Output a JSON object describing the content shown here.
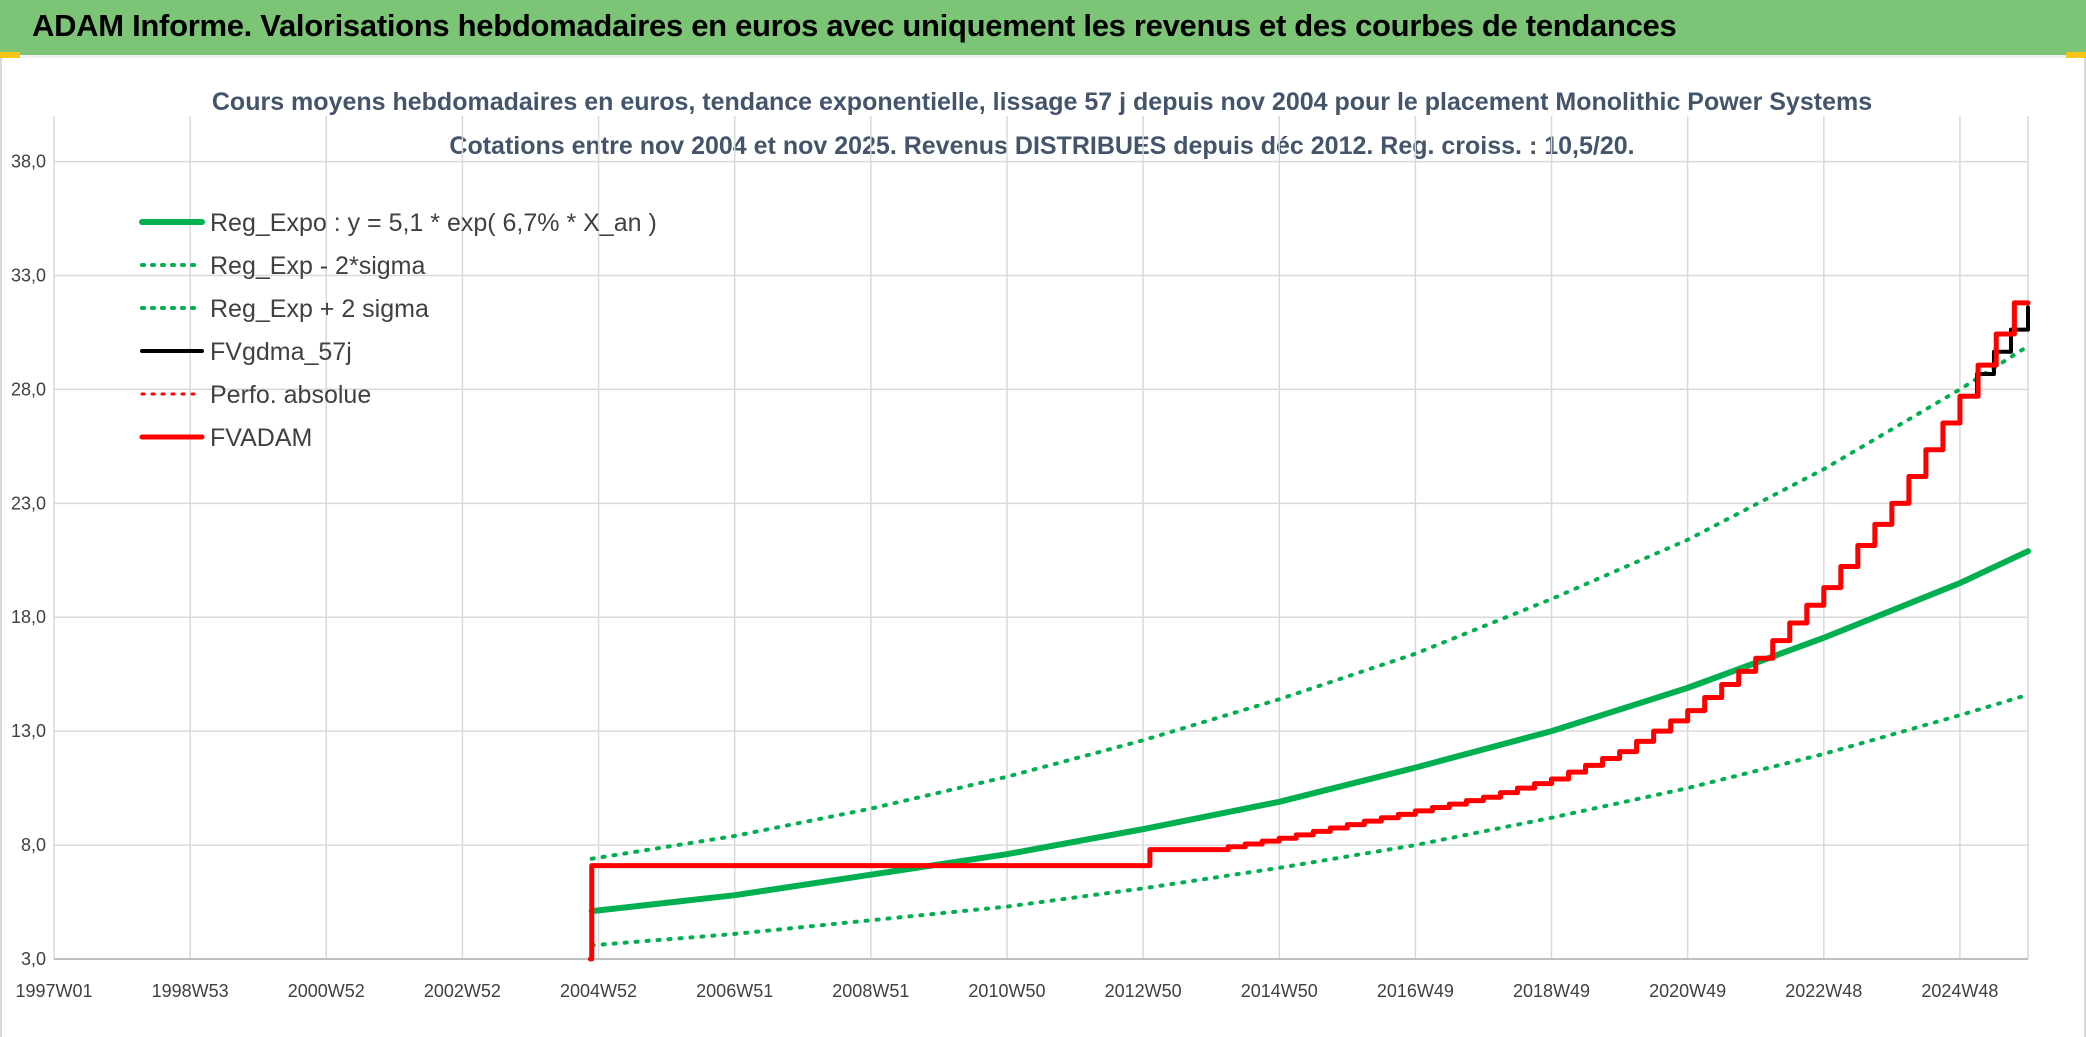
{
  "header": {
    "title": "ADAM Informe. Valorisations hebdomadaires en euros avec uniquement les revenus et des courbes de tendances"
  },
  "colors": {
    "header_bg": "#7cc576",
    "green": "#00b050",
    "red": "#ff0000",
    "black": "#000000",
    "grid": "#d9d9d9",
    "title": "#44546a"
  },
  "chart_data": {
    "type": "line",
    "title_line1": "Cours moyens hebdomadaires en euros, tendance exponentielle, lissage 57 j depuis nov 2004 pour le placement Monolithic Power Systems",
    "title_line2": "Cotations entre nov 2004 et nov 2025. Revenus DISTRIBUES depuis déc 2012. Reg. croiss. : 10,5/20.",
    "x_tick_labels": [
      "1997W01",
      "1998W53",
      "2000W52",
      "2002W52",
      "2004W52",
      "2006W51",
      "2008W51",
      "2010W50",
      "2012W50",
      "2014W50",
      "2016W49",
      "2018W49",
      "2020W49",
      "2022W48",
      "2024W48"
    ],
    "x_unit": "year",
    "x_ticks": [
      1997,
      1999,
      2001,
      2003,
      2005,
      2007,
      2009,
      2011,
      2013,
      2015,
      2017,
      2019,
      2021,
      2023,
      2025
    ],
    "xlim": [
      1997,
      2026
    ],
    "y_ticks": [
      "3,0",
      "8,0",
      "13,0",
      "18,0",
      "23,0",
      "28,0",
      "33,0",
      "38,0"
    ],
    "ylim": [
      3,
      40
    ],
    "grid": true,
    "legend_position": "top-left",
    "legend": [
      {
        "label": "Reg_Expo : y = 5,1 * exp( 6,7% *  X_an )",
        "color": "#00b050",
        "style": "solid",
        "width": 6
      },
      {
        "label": "Reg_Exp - 2*sigma",
        "color": "#00b050",
        "style": "dotted",
        "width": 4
      },
      {
        "label": "Reg_Exp + 2 sigma",
        "color": "#00b050",
        "style": "dotted",
        "width": 4
      },
      {
        "label": "FVgdma_57j",
        "color": "#000000",
        "style": "solid",
        "width": 4
      },
      {
        "label": "Perfo. absolue",
        "color": "#ff0000",
        "style": "dotted",
        "width": 3
      },
      {
        "label": "FVADAM",
        "color": "#ff0000",
        "style": "solid",
        "width": 5
      }
    ],
    "series": [
      {
        "name": "Reg_Expo : y = 5,1 * exp( 6,7% *  X_an )",
        "x": [
          2004.9,
          2007,
          2009,
          2011,
          2013,
          2015,
          2017,
          2019,
          2021,
          2023,
          2025,
          2026
        ],
        "y": [
          5.1,
          5.8,
          6.7,
          7.6,
          8.7,
          9.9,
          11.4,
          13.0,
          14.9,
          17.1,
          19.5,
          20.9
        ]
      },
      {
        "name": "Reg_Exp - 2*sigma",
        "x": [
          2004.9,
          2007,
          2009,
          2011,
          2013,
          2015,
          2017,
          2019,
          2021,
          2023,
          2025,
          2026
        ],
        "y": [
          3.6,
          4.1,
          4.7,
          5.3,
          6.1,
          7.0,
          8.0,
          9.2,
          10.5,
          12.0,
          13.7,
          14.6
        ]
      },
      {
        "name": "Reg_Exp + 2 sigma",
        "x": [
          2004.9,
          2007,
          2009,
          2011,
          2013,
          2015,
          2017,
          2019,
          2021,
          2023,
          2025,
          2026
        ],
        "y": [
          7.4,
          8.4,
          9.6,
          11.0,
          12.6,
          14.4,
          16.4,
          18.8,
          21.4,
          24.5,
          28.0,
          29.9
        ]
      },
      {
        "name": "FVgdma_57j",
        "x": [
          2004.9,
          2012.9,
          2013.1,
          2014,
          2015,
          2016,
          2017,
          2018,
          2019,
          2020,
          2021,
          2022,
          2023,
          2024,
          2025,
          2026
        ],
        "y": [
          7.1,
          7.1,
          7.8,
          7.8,
          8.3,
          8.9,
          9.5,
          10.1,
          10.9,
          12.1,
          13.9,
          16.2,
          19.3,
          23.0,
          27.7,
          31.6
        ]
      },
      {
        "name": "FVADAM",
        "x": [
          2004.88,
          2004.9,
          2012.9,
          2013.1,
          2014,
          2015,
          2016,
          2017,
          2018,
          2019,
          2020,
          2021,
          2022,
          2023,
          2024,
          2025,
          2025.8,
          2026
        ],
        "y": [
          3.0,
          7.1,
          7.1,
          7.8,
          7.8,
          8.3,
          8.9,
          9.5,
          10.1,
          10.9,
          12.1,
          13.9,
          16.2,
          19.3,
          23.0,
          27.7,
          31.8,
          31.8
        ]
      }
    ]
  }
}
